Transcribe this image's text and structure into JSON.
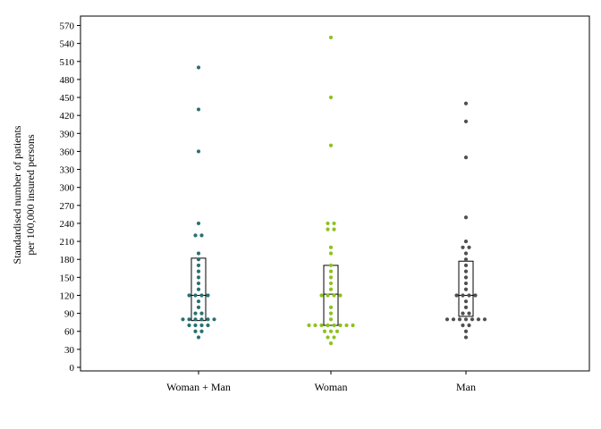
{
  "chart_data": {
    "type": "scatter",
    "title": "",
    "xlabel": "",
    "ylabel_line1": "Standardised number of patients",
    "ylabel_line2": "per 100,000 insured persons",
    "ylim": [
      0,
      585
    ],
    "yticks": [
      0,
      30,
      60,
      90,
      120,
      150,
      180,
      210,
      240,
      270,
      300,
      330,
      360,
      390,
      420,
      450,
      480,
      510,
      540,
      570
    ],
    "categories": [
      "Woman + Man",
      "Woman",
      "Man"
    ],
    "grid": false,
    "series": [
      {
        "color": "#2a7070",
        "box": {
          "q1": 78,
          "median": 120,
          "q3": 182
        },
        "values": [
          500,
          430,
          360,
          240,
          220,
          220,
          190,
          180,
          170,
          160,
          150,
          140,
          130,
          120,
          120,
          120,
          120,
          110,
          100,
          90,
          90,
          80,
          80,
          80,
          80,
          80,
          80,
          70,
          70,
          70,
          70,
          60,
          60,
          50
        ]
      },
      {
        "color": "#8cc21f",
        "box": {
          "q1": 70,
          "median": 122,
          "q3": 170
        },
        "values": [
          550,
          450,
          370,
          240,
          240,
          230,
          230,
          200,
          190,
          170,
          160,
          150,
          140,
          130,
          120,
          120,
          120,
          120,
          100,
          90,
          80,
          70,
          70,
          70,
          70,
          70,
          70,
          70,
          70,
          60,
          60,
          60,
          50,
          50,
          40
        ]
      },
      {
        "color": "#505050",
        "box": {
          "q1": 85,
          "median": 120,
          "q3": 177
        },
        "values": [
          440,
          410,
          350,
          250,
          210,
          200,
          200,
          190,
          180,
          170,
          160,
          150,
          140,
          130,
          120,
          120,
          120,
          120,
          110,
          100,
          90,
          90,
          80,
          80,
          80,
          80,
          80,
          80,
          80,
          70,
          70,
          60,
          50
        ]
      }
    ]
  }
}
